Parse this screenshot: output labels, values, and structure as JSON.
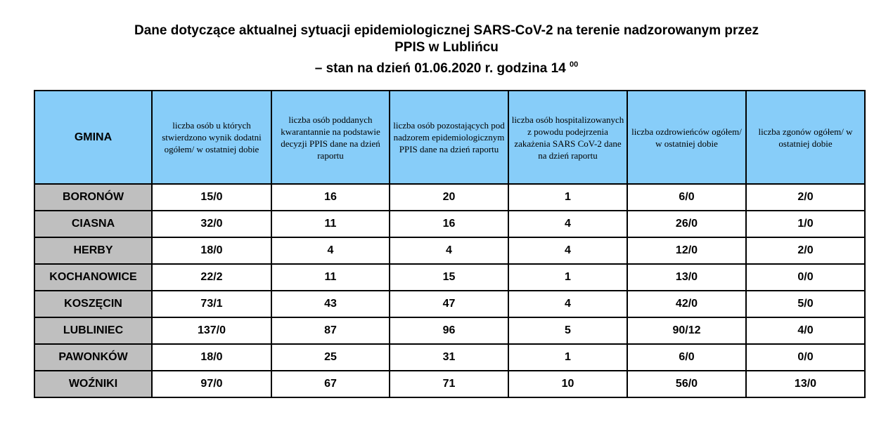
{
  "title": {
    "line1": "Dane dotyczące aktualnej sytuacji epidemiologicznej SARS-CoV-2 na terenie nadzorowanym przez",
    "line2": "PPIS w Lublińcu",
    "line3": "– stan na dzień 01.06.2020 r.  godzina 14",
    "line3_sup": "00"
  },
  "colors": {
    "header_bg": "#87CDF9",
    "gmina_bg": "#BFBFBF"
  },
  "table": {
    "headers": [
      "GMINA",
      "liczba osób u których stwierdzono wynik dodatni ogółem/ w ostatniej dobie",
      "liczba osób poddanych kwarantannie na podstawie decyzji PPIS dane na dzień raportu",
      "liczba osób pozostających pod nadzorem epidemiologicznym PPIS dane na dzień raportu",
      "liczba osób hospitalizowanych z powodu podejrzenia zakażenia SARS CoV-2 dane na dzień raportu",
      "liczba ozdrowieńców ogółem/ w ostatniej dobie",
      "liczba zgonów ogółem/ w ostatniej dobie"
    ],
    "rows": [
      [
        "BORONÓW",
        "15/0",
        "16",
        "20",
        "1",
        "6/0",
        "2/0"
      ],
      [
        "CIASNA",
        "32/0",
        "11",
        "16",
        "4",
        "26/0",
        "1/0"
      ],
      [
        "HERBY",
        "18/0",
        "4",
        "4",
        "4",
        "12/0",
        "2/0"
      ],
      [
        "KOCHANOWICE",
        "22/2",
        "11",
        "15",
        "1",
        "13/0",
        "0/0"
      ],
      [
        "KOSZĘCIN",
        "73/1",
        "43",
        "47",
        "4",
        "42/0",
        "5/0"
      ],
      [
        "LUBLINIEC",
        "137/0",
        "87",
        "96",
        "5",
        "90/12",
        "4/0"
      ],
      [
        "PAWONKÓW",
        "18/0",
        "25",
        "31",
        "1",
        "6/0",
        "0/0"
      ],
      [
        "WOŹNIKI",
        "97/0",
        "67",
        "71",
        "10",
        "56/0",
        "13/0"
      ]
    ]
  }
}
